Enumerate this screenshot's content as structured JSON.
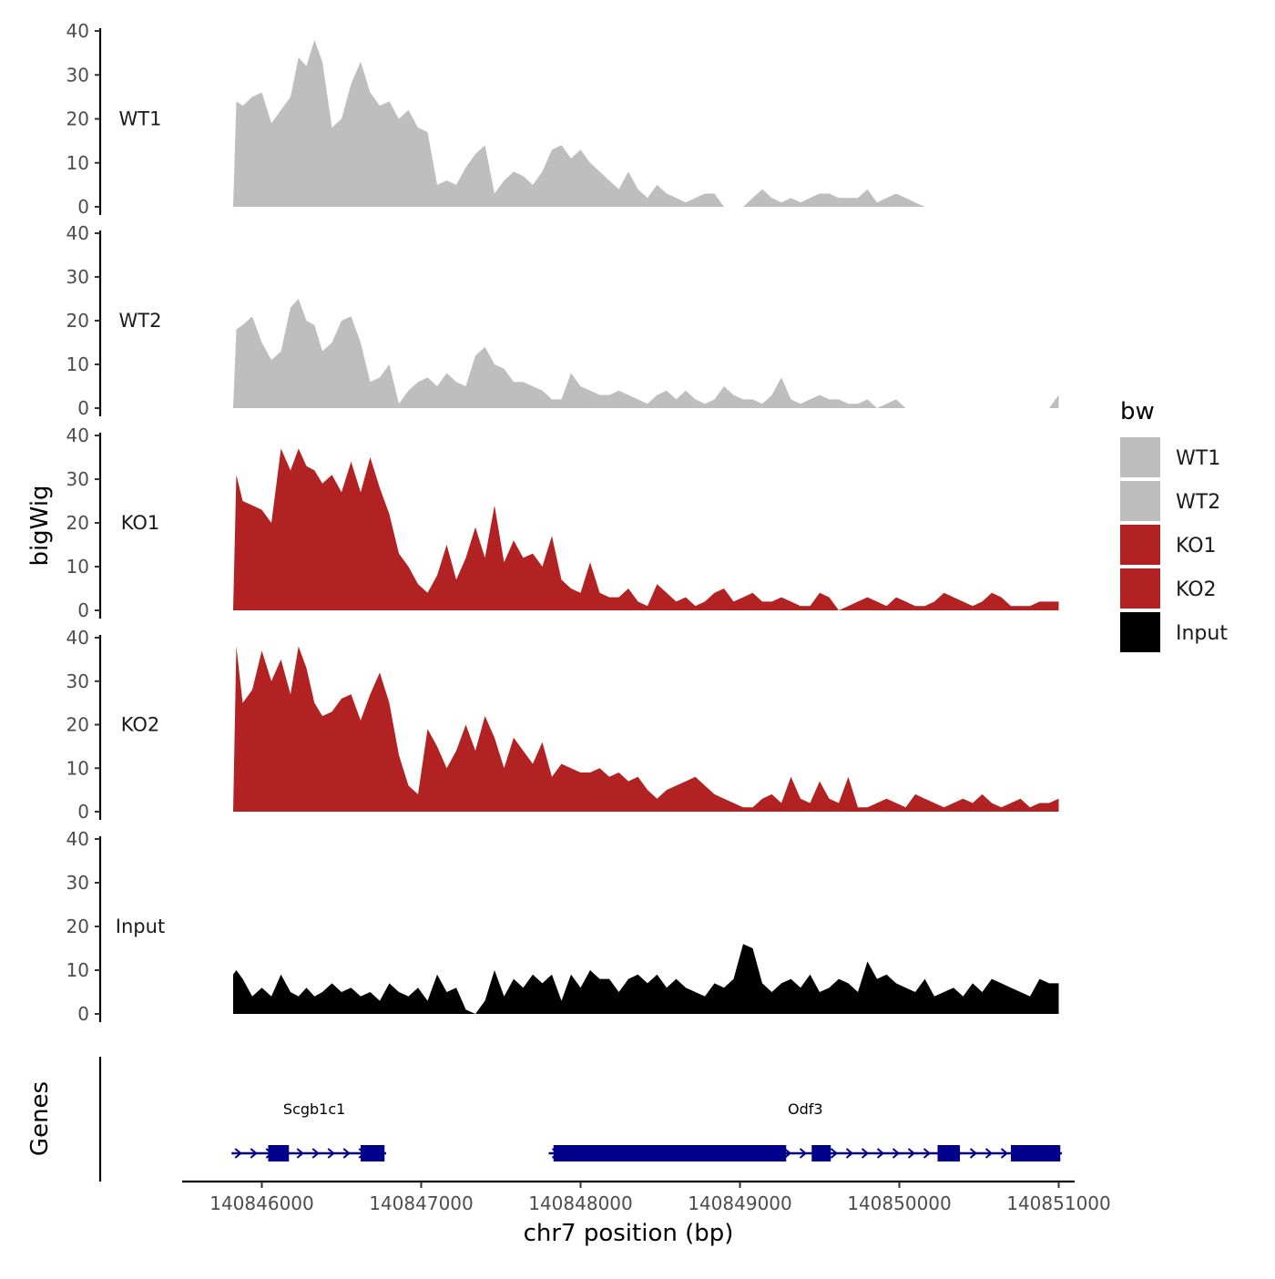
{
  "chart_data": {
    "type": "area",
    "y_axis_title": "bigWig",
    "x_axis_title": "chr7 position (bp)",
    "genes_axis_title": "Genes",
    "ylim": [
      0,
      40
    ],
    "y_ticks": [
      0,
      10,
      20,
      30,
      40
    ],
    "xlim": [
      140845500,
      140851100
    ],
    "x_ticks": [
      140846000,
      140847000,
      140848000,
      140849000,
      140850000,
      140851000
    ],
    "x_tick_labels": [
      "140846000",
      "140847000",
      "140848000",
      "140849000",
      "140850000",
      "140851000"
    ],
    "legend": {
      "title": "bw",
      "position": "right",
      "items": [
        {
          "label": "WT1",
          "color": "#bebebe"
        },
        {
          "label": "WT2",
          "color": "#bebebe"
        },
        {
          "label": "KO1",
          "color": "#b22222"
        },
        {
          "label": "KO2",
          "color": "#b22222"
        },
        {
          "label": "Input",
          "color": "#000000"
        }
      ]
    },
    "x": [
      140845820,
      140845840,
      140845880,
      140845940,
      140846000,
      140846060,
      140846120,
      140846180,
      140846230,
      140846280,
      140846330,
      140846380,
      140846440,
      140846500,
      140846560,
      140846620,
      140846680,
      140846740,
      140846800,
      140846860,
      140846920,
      140846980,
      140847040,
      140847100,
      140847160,
      140847220,
      140847280,
      140847340,
      140847400,
      140847460,
      140847520,
      140847580,
      140847640,
      140847700,
      140847760,
      140847820,
      140847880,
      140847940,
      140848000,
      140848060,
      140848120,
      140848180,
      140848240,
      140848300,
      140848360,
      140848420,
      140848480,
      140848540,
      140848600,
      140848660,
      140848720,
      140848780,
      140848840,
      140848900,
      140848960,
      140849020,
      140849080,
      140849140,
      140849200,
      140849260,
      140849320,
      140849380,
      140849440,
      140849500,
      140849560,
      140849620,
      140849680,
      140849740,
      140849800,
      140849860,
      140849920,
      140849980,
      140850040,
      140850100,
      140850160,
      140850220,
      140850280,
      140850340,
      140850400,
      140850460,
      140850520,
      140850580,
      140850640,
      140850700,
      140850760,
      140850820,
      140850880,
      140850940,
      140851000
    ],
    "series": [
      {
        "name": "WT1",
        "color": "#bebebe",
        "values": [
          0,
          24,
          23,
          25,
          26,
          19,
          22,
          25,
          34,
          32,
          38,
          33,
          18,
          20,
          28,
          33,
          26,
          23,
          24,
          20,
          22,
          18,
          17,
          5,
          6,
          5,
          9,
          12,
          14,
          3,
          6,
          8,
          7,
          5,
          8,
          13,
          14,
          11,
          13,
          10,
          8,
          6,
          4,
          8,
          4,
          2,
          5,
          3,
          2,
          1,
          2,
          3,
          3,
          0,
          0,
          0,
          2,
          4,
          2,
          1,
          2,
          1,
          2,
          3,
          3,
          2,
          2,
          2,
          4,
          1,
          2,
          3,
          2,
          1,
          0,
          0,
          0,
          0,
          0,
          0,
          0,
          0,
          0,
          0,
          0,
          0,
          0,
          0,
          0
        ]
      },
      {
        "name": "WT2",
        "color": "#bebebe",
        "values": [
          0,
          18,
          19,
          21,
          15,
          11,
          13,
          23,
          25,
          20,
          19,
          13,
          15,
          20,
          21,
          15,
          6,
          7,
          10,
          1,
          4,
          6,
          7,
          5,
          8,
          6,
          5,
          12,
          14,
          10,
          9,
          6,
          6,
          5,
          4,
          2,
          2,
          8,
          5,
          4,
          3,
          3,
          4,
          3,
          2,
          1,
          3,
          4,
          2,
          4,
          2,
          1,
          2,
          5,
          3,
          2,
          2,
          1,
          3,
          7,
          2,
          1,
          2,
          3,
          2,
          2,
          1,
          1,
          2,
          0,
          1,
          2,
          0,
          0,
          0,
          0,
          0,
          0,
          0,
          0,
          0,
          0,
          0,
          0,
          0,
          0,
          0,
          0,
          3
        ]
      },
      {
        "name": "KO1",
        "color": "#b22222",
        "values": [
          0,
          31,
          25,
          24,
          23,
          20,
          37,
          32,
          37,
          33,
          32,
          29,
          31,
          27,
          34,
          27,
          35,
          28,
          22,
          13,
          10,
          6,
          4,
          8,
          15,
          7,
          12,
          19,
          12,
          24,
          11,
          16,
          12,
          13,
          10,
          17,
          7,
          5,
          4,
          11,
          4,
          3,
          3,
          5,
          2,
          1,
          6,
          4,
          2,
          3,
          1,
          2,
          4,
          5,
          2,
          3,
          4,
          2,
          2,
          3,
          2,
          1,
          1,
          4,
          3,
          0,
          1,
          2,
          3,
          2,
          1,
          3,
          2,
          1,
          1,
          2,
          4,
          3,
          2,
          1,
          2,
          4,
          3,
          1,
          1,
          1,
          2,
          2,
          2
        ]
      },
      {
        "name": "KO2",
        "color": "#b22222",
        "values": [
          0,
          38,
          25,
          28,
          37,
          30,
          35,
          27,
          38,
          33,
          25,
          22,
          23,
          26,
          27,
          21,
          27,
          32,
          25,
          13,
          6,
          4,
          19,
          15,
          10,
          14,
          20,
          14,
          22,
          17,
          10,
          17,
          14,
          11,
          16,
          8,
          11,
          10,
          9,
          9,
          10,
          8,
          9,
          7,
          8,
          5,
          3,
          5,
          6,
          7,
          8,
          6,
          4,
          3,
          2,
          1,
          1,
          3,
          4,
          2,
          8,
          3,
          2,
          7,
          3,
          2,
          8,
          1,
          1,
          2,
          3,
          2,
          1,
          4,
          3,
          2,
          1,
          2,
          3,
          2,
          4,
          2,
          1,
          2,
          3,
          1,
          2,
          2,
          3
        ]
      },
      {
        "name": "Input",
        "color": "#000000",
        "values": [
          9,
          10,
          8,
          4,
          6,
          4,
          9,
          5,
          4,
          6,
          4,
          5,
          7,
          5,
          6,
          4,
          5,
          3,
          7,
          5,
          4,
          6,
          3,
          9,
          5,
          6,
          1,
          0,
          3,
          10,
          4,
          8,
          6,
          9,
          7,
          9,
          3,
          9,
          6,
          10,
          8,
          8,
          5,
          8,
          9,
          7,
          9,
          6,
          8,
          6,
          5,
          4,
          7,
          6,
          8,
          16,
          15,
          7,
          5,
          7,
          8,
          6,
          9,
          5,
          6,
          8,
          7,
          5,
          12,
          8,
          9,
          7,
          6,
          5,
          8,
          4,
          5,
          6,
          4,
          7,
          5,
          8,
          7,
          6,
          5,
          4,
          8,
          7,
          7
        ]
      }
    ],
    "genes": [
      {
        "name": "Scgb1c1",
        "color": "#00008b",
        "strand": "+",
        "start": 140845810,
        "end": 140846780,
        "exons": [
          [
            140846040,
            140846170
          ],
          [
            140846620,
            140846770
          ]
        ]
      },
      {
        "name": "Odf3",
        "color": "#00008b",
        "strand": "+",
        "start": 140847800,
        "end": 140851020,
        "exons": [
          [
            140847830,
            140849290
          ],
          [
            140849450,
            140849570
          ],
          [
            140850240,
            140850380
          ],
          [
            140850700,
            140851010
          ]
        ]
      }
    ]
  }
}
